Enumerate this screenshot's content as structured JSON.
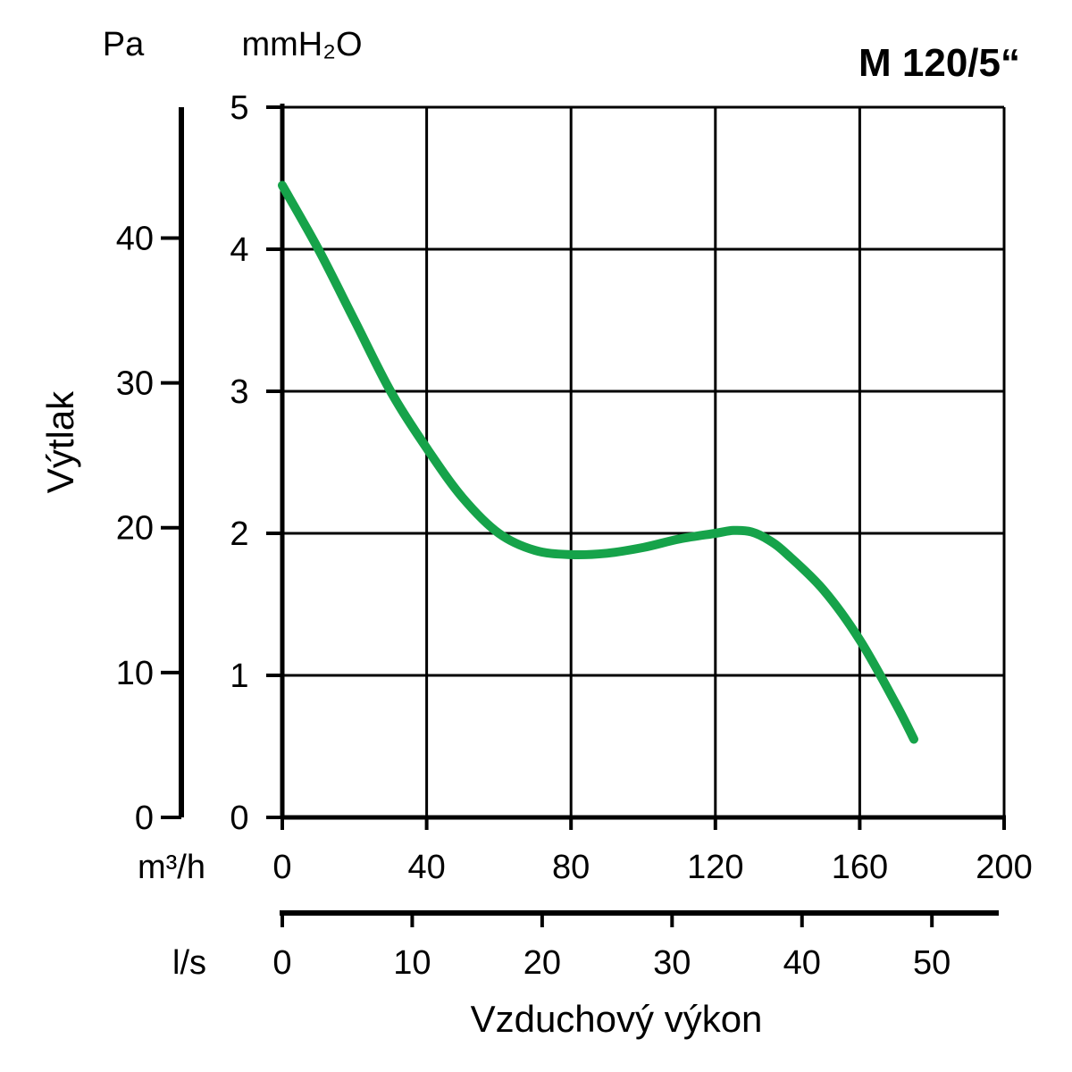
{
  "chart_data": {
    "type": "line",
    "title": "M 120/5“",
    "xlabel": "Vzduchový výkon",
    "ylabel": "Výtlak",
    "x_unit_primary": "m³/h",
    "x_unit_secondary": "l/s",
    "y_unit_left": "Pa",
    "y_unit_right": "mmH₂O",
    "xlim": [
      0,
      200
    ],
    "ylim": [
      0,
      5
    ],
    "x_ticks": [
      0,
      40,
      80,
      120,
      160,
      200
    ],
    "y_ticks": [
      0,
      1,
      2,
      3,
      4,
      5
    ],
    "x_secondary_ticks": [
      0,
      10,
      20,
      30,
      40,
      50
    ],
    "y_secondary_ticks": [
      0,
      10,
      20,
      30,
      40
    ],
    "grid": true,
    "series": [
      {
        "color": "#16A34A",
        "x": [
          0,
          10,
          20,
          30,
          40,
          50,
          60,
          70,
          80,
          90,
          100,
          110,
          120,
          125,
          130,
          135,
          140,
          150,
          160,
          170,
          175
        ],
        "y": [
          4.45,
          4.0,
          3.5,
          3.0,
          2.6,
          2.25,
          2.0,
          1.88,
          1.85,
          1.86,
          1.9,
          1.96,
          2.0,
          2.02,
          2.01,
          1.95,
          1.85,
          1.6,
          1.25,
          0.8,
          0.55
        ]
      }
    ]
  }
}
